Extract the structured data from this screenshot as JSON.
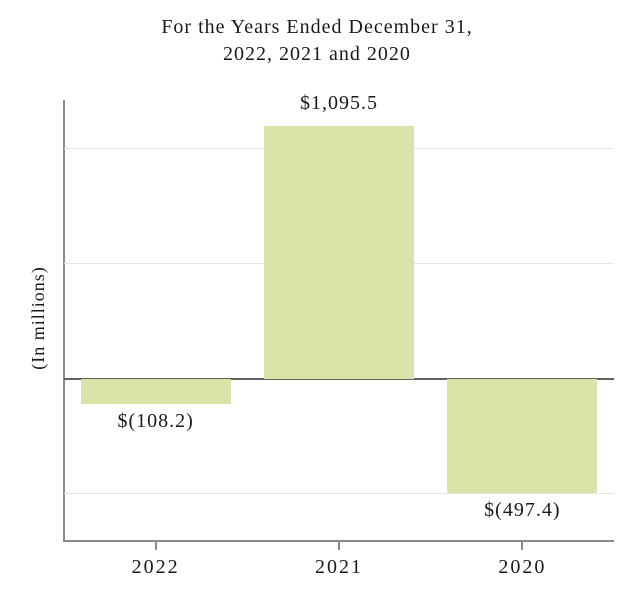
{
  "chart_data": {
    "type": "bar",
    "title": "For the Years Ended December 31, 2022, 2021 and 2020",
    "title_lines": [
      "For the Years Ended December 31,",
      "2022, 2021 and 2020"
    ],
    "ylabel": "(In millions)",
    "xlabel": "",
    "categories": [
      "2022",
      "2021",
      "2020"
    ],
    "values": [
      -108.2,
      1095.5,
      -497.4
    ],
    "value_labels": [
      "$(108.2)",
      "$1,095.5",
      "$(497.4)"
    ],
    "ylim": [
      -700,
      1210
    ],
    "gridline_values": [
      1000,
      500,
      -500
    ],
    "zero_baseline": 0,
    "grid": "on",
    "legend": "none",
    "colors": {
      "bar_fill": "#dbe3a8",
      "gridline": "#e4e4e4",
      "zero_line": "#616161",
      "axis_line": "#8a8a8a",
      "text": "#1a1a1a",
      "background": "#ffffff"
    }
  }
}
